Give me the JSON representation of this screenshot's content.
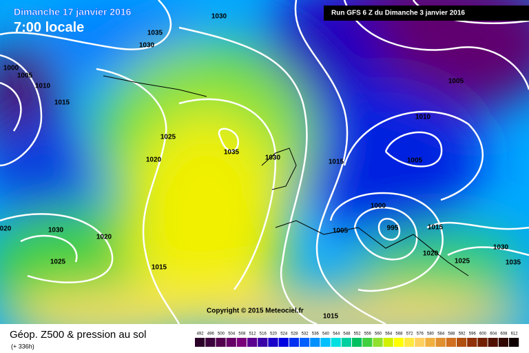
{
  "header": {
    "date": "Dimanche 17 janvier 2016",
    "time": "7:00 locale",
    "run": "Run GFS 6 Z du Dimanche 3 janvier 2016"
  },
  "map": {
    "isobar_labels": [
      "1030",
      "1035",
      "1030",
      "1000",
      "1005",
      "1010",
      "1015",
      "1025",
      "1035",
      "1020",
      "1030",
      "1015",
      "1005",
      "1010",
      "1005",
      "1000",
      "995",
      "1005",
      "1015",
      "020",
      "1030",
      "1020",
      "1030",
      "1020",
      "1025",
      "1035",
      "1025",
      "1015",
      "1015"
    ],
    "copyright": "Copyright © 2015 Meteociel.fr"
  },
  "footer": {
    "title": "Géop. Z500 & pression au sol",
    "lead": "(+ 336h)"
  },
  "legend": {
    "scale": [
      {
        "value": 492,
        "color": "#2a0028"
      },
      {
        "value": 496,
        "color": "#3c003c"
      },
      {
        "value": 500,
        "color": "#52004e"
      },
      {
        "value": 504,
        "color": "#660066"
      },
      {
        "value": 508,
        "color": "#7a007a"
      },
      {
        "value": 512,
        "color": "#5c0090"
      },
      {
        "value": 516,
        "color": "#3a00a8"
      },
      {
        "value": 520,
        "color": "#1a00c8"
      },
      {
        "value": 524,
        "color": "#0000e0"
      },
      {
        "value": 528,
        "color": "#0030f0"
      },
      {
        "value": 532,
        "color": "#0060ff"
      },
      {
        "value": 536,
        "color": "#0090ff"
      },
      {
        "value": 540,
        "color": "#00c0ff"
      },
      {
        "value": 544,
        "color": "#00e0e0"
      },
      {
        "value": 548,
        "color": "#00d0a0"
      },
      {
        "value": 552,
        "color": "#00c060"
      },
      {
        "value": 556,
        "color": "#40d040"
      },
      {
        "value": 560,
        "color": "#90e030"
      },
      {
        "value": 564,
        "color": "#d0f000"
      },
      {
        "value": 568,
        "color": "#ffff00"
      },
      {
        "value": 572,
        "color": "#ffe840"
      },
      {
        "value": 576,
        "color": "#ffd060"
      },
      {
        "value": 580,
        "color": "#f0b040"
      },
      {
        "value": 584,
        "color": "#e09030"
      },
      {
        "value": 588,
        "color": "#d07020"
      },
      {
        "value": 592,
        "color": "#b05010"
      },
      {
        "value": 596,
        "color": "#903008"
      },
      {
        "value": 600,
        "color": "#702000"
      },
      {
        "value": 604,
        "color": "#501000"
      },
      {
        "value": 608,
        "color": "#300800"
      },
      {
        "value": 612,
        "color": "#100000"
      }
    ]
  }
}
